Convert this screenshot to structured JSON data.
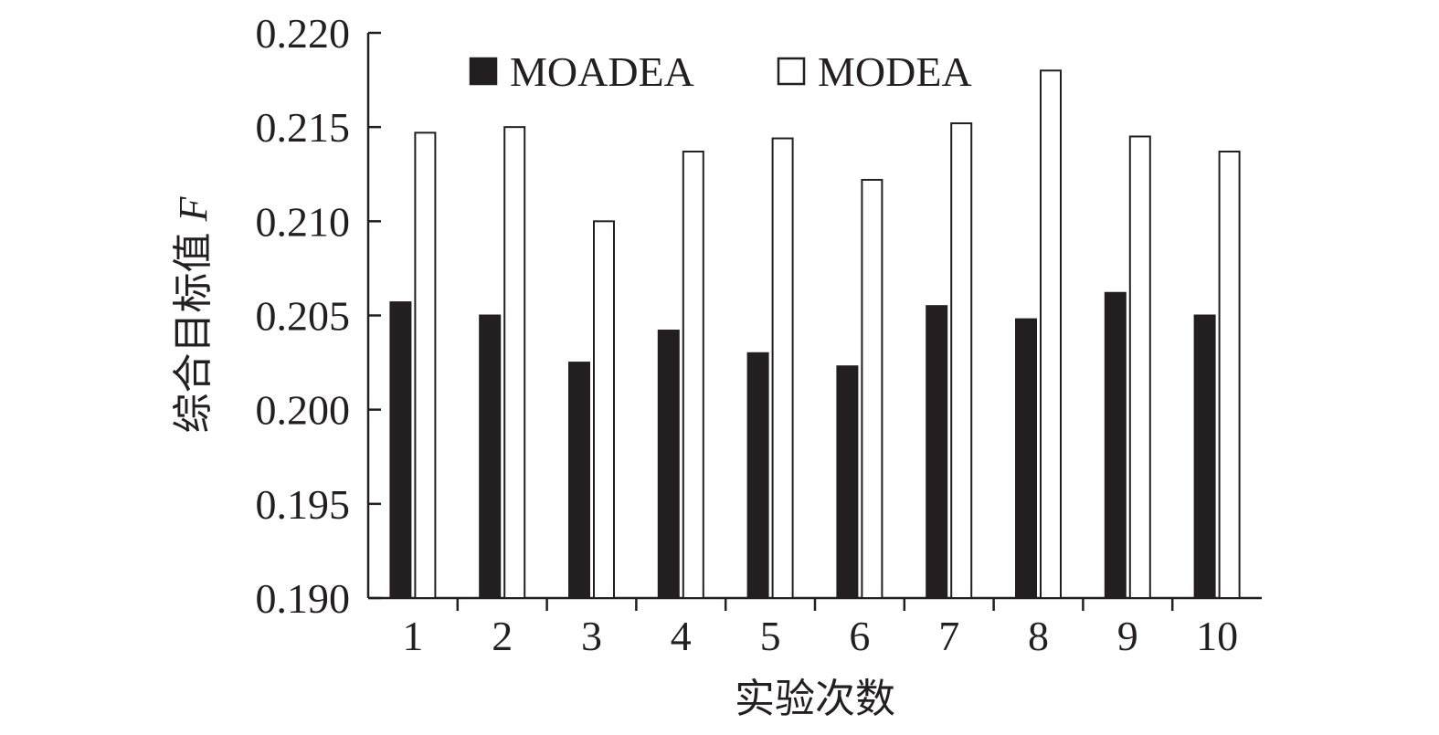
{
  "chart_data": {
    "type": "bar",
    "categories": [
      "1",
      "2",
      "3",
      "4",
      "5",
      "6",
      "7",
      "8",
      "9",
      "10"
    ],
    "series": [
      {
        "name": "MOADEA",
        "color": "#231f20",
        "values": [
          0.2057,
          0.205,
          0.2025,
          0.2042,
          0.203,
          0.2023,
          0.2055,
          0.2048,
          0.2062,
          0.205
        ]
      },
      {
        "name": "MODEA",
        "color": "#ffffff",
        "values": [
          0.2147,
          0.215,
          0.21,
          0.2137,
          0.2144,
          0.2122,
          0.2152,
          0.218,
          0.2145,
          0.2137
        ]
      }
    ],
    "title": "",
    "xlabel": "实验次数",
    "ylabel": "综合目标值",
    "ylabel_var": "F",
    "ylim": [
      0.19,
      0.22
    ],
    "yticks": [
      "0.190",
      "0.195",
      "0.200",
      "0.205",
      "0.210",
      "0.215",
      "0.220"
    ],
    "legend_position": "top",
    "grid": false
  }
}
